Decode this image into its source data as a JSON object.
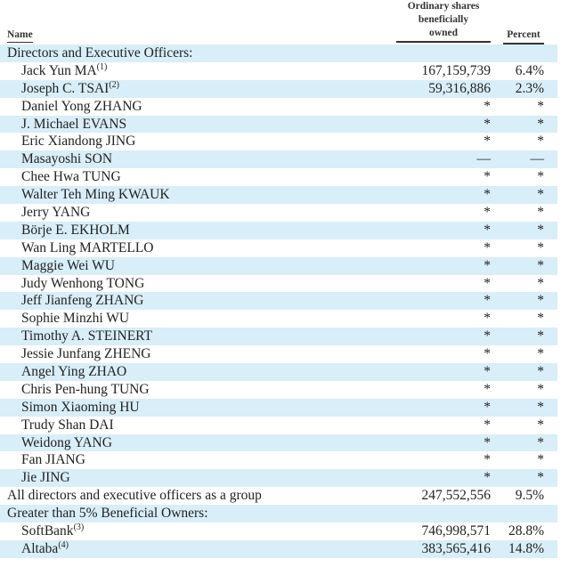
{
  "header": {
    "name": "Name",
    "shares_lines": [
      "Ordinary shares",
      "beneficially",
      "owned"
    ],
    "percent": "Percent"
  },
  "rows": [
    {
      "name": "Directors and Executive Officers:",
      "sup": "",
      "shares": "",
      "percent": "",
      "indent": false
    },
    {
      "name": "Jack Yun MA",
      "sup": "(1)",
      "shares": "167,159,739",
      "percent": "6.4%",
      "indent": true
    },
    {
      "name": "Joseph C. TSAI",
      "sup": "(2)",
      "shares": "59,316,886",
      "percent": "2.3%",
      "indent": true
    },
    {
      "name": "Daniel Yong ZHANG",
      "sup": "",
      "shares": "*",
      "percent": "*",
      "indent": true
    },
    {
      "name": "J. Michael EVANS",
      "sup": "",
      "shares": "*",
      "percent": "*",
      "indent": true
    },
    {
      "name": "Eric Xiandong JING",
      "sup": "",
      "shares": "*",
      "percent": "*",
      "indent": true
    },
    {
      "name": "Masayoshi SON",
      "sup": "",
      "shares": "—",
      "percent": "—",
      "indent": true
    },
    {
      "name": "Chee Hwa TUNG",
      "sup": "",
      "shares": "*",
      "percent": "*",
      "indent": true
    },
    {
      "name": "Walter Teh Ming KWAUK",
      "sup": "",
      "shares": "*",
      "percent": "*",
      "indent": true
    },
    {
      "name": "Jerry YANG",
      "sup": "",
      "shares": "*",
      "percent": "*",
      "indent": true
    },
    {
      "name": "Börje E. EKHOLM",
      "sup": "",
      "shares": "*",
      "percent": "*",
      "indent": true
    },
    {
      "name": "Wan Ling MARTELLO",
      "sup": "",
      "shares": "*",
      "percent": "*",
      "indent": true
    },
    {
      "name": "Maggie Wei WU",
      "sup": "",
      "shares": "*",
      "percent": "*",
      "indent": true
    },
    {
      "name": "Judy Wenhong TONG",
      "sup": "",
      "shares": "*",
      "percent": "*",
      "indent": true
    },
    {
      "name": "Jeff Jianfeng ZHANG",
      "sup": "",
      "shares": "*",
      "percent": "*",
      "indent": true
    },
    {
      "name": "Sophie Minzhi WU",
      "sup": "",
      "shares": "*",
      "percent": "*",
      "indent": true
    },
    {
      "name": "Timothy A. STEINERT",
      "sup": "",
      "shares": "*",
      "percent": "*",
      "indent": true
    },
    {
      "name": "Jessie Junfang ZHENG",
      "sup": "",
      "shares": "*",
      "percent": "*",
      "indent": true
    },
    {
      "name": "Angel Ying ZHAO",
      "sup": "",
      "shares": "*",
      "percent": "*",
      "indent": true
    },
    {
      "name": "Chris Pen-hung TUNG",
      "sup": "",
      "shares": "*",
      "percent": "*",
      "indent": true
    },
    {
      "name": "Simon Xiaoming HU",
      "sup": "",
      "shares": "*",
      "percent": "*",
      "indent": true
    },
    {
      "name": "Trudy Shan DAI",
      "sup": "",
      "shares": "*",
      "percent": "*",
      "indent": true
    },
    {
      "name": "Weidong YANG",
      "sup": "",
      "shares": "*",
      "percent": "*",
      "indent": true
    },
    {
      "name": "Fan JIANG",
      "sup": "",
      "shares": "*",
      "percent": "*",
      "indent": true
    },
    {
      "name": "Jie JING",
      "sup": "",
      "shares": "*",
      "percent": "*",
      "indent": true
    },
    {
      "name": "All directors and executive officers as a group",
      "sup": "",
      "shares": "247,552,556",
      "percent": "9.5%",
      "indent": false
    },
    {
      "name": "Greater than 5% Beneficial Owners:",
      "sup": "",
      "shares": "",
      "percent": "",
      "indent": false
    },
    {
      "name": "SoftBank",
      "sup": "(3)",
      "shares": "746,998,571",
      "percent": "28.8%",
      "indent": true
    },
    {
      "name": "Altaba",
      "sup": "(4)",
      "shares": "383,565,416",
      "percent": "14.8%",
      "indent": true
    }
  ],
  "colors": {
    "row_shade": "#d8eef8"
  }
}
